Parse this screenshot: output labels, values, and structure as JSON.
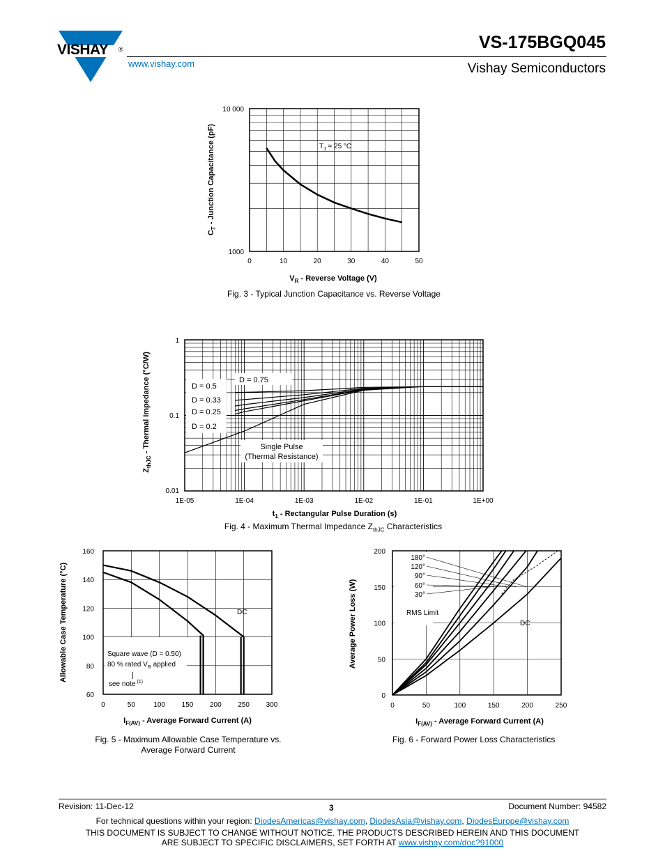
{
  "header": {
    "logo_text": "VISHAY",
    "logo_reg": "®",
    "website": "www.vishay.com",
    "part_number": "VS-175BGQ045",
    "company": "Vishay Semiconductors"
  },
  "figures": [
    {
      "id": "fig3",
      "caption": "Fig. 3 - Typical Junction Capacitance vs. Reverse Voltage",
      "ylabel_main": "C",
      "ylabel_sub": "T",
      "ylabel_rest": " - Junction Capacitance (pF)",
      "xlabel_main": "V",
      "xlabel_sub": "R",
      "xlabel_rest": " - Reverse Voltage (V)",
      "annotation_main": "T",
      "annotation_sub": "J",
      "annotation_rest": " = 25 °C",
      "yticks": [
        "10 000",
        "1000"
      ],
      "xticks": [
        "0",
        "10",
        "20",
        "30",
        "40",
        "50"
      ]
    },
    {
      "id": "fig4",
      "caption_main": "Fig. 4 - Maximum Thermal Impedance Z",
      "caption_sub": "thJC",
      "caption_rest": " Characteristics",
      "ylabel_main": "Z",
      "ylabel_sub": "thJC",
      "ylabel_rest": " - Thermal Impedance (°C/W)",
      "xlabel_main": "t",
      "xlabel_sub": "1",
      "xlabel_rest": " - Rectangular Pulse Duration (s)",
      "yticks": [
        "1",
        "0.1",
        "0.01"
      ],
      "xticks": [
        "1E-05",
        "1E-04",
        "1E-03",
        "1E-02",
        "1E-01",
        "1E+00"
      ],
      "labels": [
        "D = 0.75",
        "D = 0.5",
        "D = 0.33",
        "D = 0.25",
        "D = 0.2"
      ],
      "single_pulse": [
        "Single Pulse",
        "(Thermal Resistance)"
      ]
    },
    {
      "id": "fig5",
      "caption_line1": "Fig. 5 - Maximum Allowable Case Temperature vs.",
      "caption_line2": "Average Forward Current",
      "ylabel": "Allowable Case Temperature (°C)",
      "xlabel_main": "I",
      "xlabel_sub": "F(AV)",
      "xlabel_rest": " - Average Forward Current (A)",
      "yticks": [
        "160",
        "140",
        "120",
        "100",
        "80",
        "60"
      ],
      "xticks": [
        "0",
        "50",
        "100",
        "150",
        "200",
        "250",
        "300"
      ],
      "dc_label": "DC",
      "note1": "Square wave (D = 0.50)",
      "note2_main": "80 % rated V",
      "note2_sub": "R",
      "note2_rest": " applied",
      "note3": "see note",
      "note3_sup": "(1)"
    },
    {
      "id": "fig6",
      "caption": "Fig. 6 - Forward Power Loss Characteristics",
      "ylabel": "Average Power Loss (W)",
      "xlabel_main": "I",
      "xlabel_sub": "F(AV)",
      "xlabel_rest": " - Average Forward Current (A)",
      "yticks": [
        "200",
        "150",
        "100",
        "50",
        "0"
      ],
      "xticks": [
        "0",
        "50",
        "100",
        "150",
        "200",
        "250"
      ],
      "angle_labels": [
        "180°",
        "120°",
        "90°",
        "60°",
        "30°"
      ],
      "rms_label": "RMS Limit",
      "dc_label": "DC"
    }
  ],
  "chart_data": [
    {
      "type": "line",
      "title": "Fig. 3 - Typical Junction Capacitance vs. Reverse Voltage",
      "xlabel": "VR - Reverse Voltage (V)",
      "ylabel": "CT - Junction Capacitance (pF)",
      "xlim": [
        0,
        50
      ],
      "ylim": [
        1000,
        10000
      ],
      "yscale": "log",
      "grid": true,
      "series": [
        {
          "name": "TJ = 25 °C",
          "x": [
            5,
            7.5,
            10,
            15,
            20,
            25,
            30,
            35,
            40,
            45
          ],
          "y": [
            5300,
            4300,
            3700,
            2950,
            2500,
            2200,
            2000,
            1830,
            1700,
            1600
          ]
        }
      ]
    },
    {
      "type": "line",
      "title": "Fig. 4 - Maximum Thermal Impedance ZthJC Characteristics",
      "xlabel": "t1 - Rectangular Pulse Duration (s)",
      "ylabel": "ZthJC - Thermal Impedance (°C/W)",
      "xlim": [
        1e-05,
        1
      ],
      "ylim": [
        0.01,
        1
      ],
      "xscale": "log",
      "yscale": "log",
      "grid": true,
      "series": [
        {
          "name": "D = 0.75",
          "x": [
            7e-05,
            0.0001,
            0.001,
            0.01,
            0.1,
            1
          ],
          "y": [
            0.201,
            0.202,
            0.212,
            0.234,
            0.24,
            0.24
          ]
        },
        {
          "name": "D = 0.5",
          "x": [
            7e-05,
            0.0001,
            0.001,
            0.01,
            0.1,
            1
          ],
          "y": [
            0.158,
            0.162,
            0.188,
            0.228,
            0.24,
            0.24
          ]
        },
        {
          "name": "D = 0.33",
          "x": [
            7e-05,
            0.0001,
            0.001,
            0.01,
            0.1,
            1
          ],
          "y": [
            0.133,
            0.139,
            0.172,
            0.224,
            0.24,
            0.24
          ]
        },
        {
          "name": "D = 0.25",
          "x": [
            7e-05,
            0.0001,
            0.001,
            0.01,
            0.1,
            1
          ],
          "y": [
            0.116,
            0.122,
            0.162,
            0.22,
            0.24,
            0.24
          ]
        },
        {
          "name": "D = 0.2",
          "x": [
            7e-05,
            0.0001,
            0.001,
            0.01,
            0.1,
            1
          ],
          "y": [
            0.104,
            0.112,
            0.156,
            0.218,
            0.24,
            0.24
          ]
        },
        {
          "name": "Single Pulse (Thermal Resistance)",
          "x": [
            1e-05,
            0.0001,
            0.001,
            0.01,
            0.1,
            1
          ],
          "y": [
            0.032,
            0.062,
            0.14,
            0.215,
            0.24,
            0.24
          ]
        }
      ]
    },
    {
      "type": "line",
      "title": "Fig. 5 - Maximum Allowable Case Temperature vs. Average Forward Current",
      "xlabel": "IF(AV) - Average Forward Current (A)",
      "ylabel": "Allowable Case Temperature (°C)",
      "xlim": [
        0,
        300
      ],
      "ylim": [
        60,
        160
      ],
      "grid": true,
      "series": [
        {
          "name": "DC",
          "x": [
            0,
            50,
            100,
            150,
            200,
            250,
            250
          ],
          "y": [
            150,
            146,
            138,
            128,
            115,
            100,
            60
          ]
        },
        {
          "name": "Square wave (D = 0.50)",
          "x": [
            0,
            50,
            100,
            150,
            178,
            178
          ],
          "y": [
            145,
            138,
            126,
            111,
            101,
            60
          ]
        }
      ]
    },
    {
      "type": "line",
      "title": "Fig. 6 - Forward Power Loss Characteristics",
      "xlabel": "IF(AV) - Average Forward Current (A)",
      "ylabel": "Average Power Loss (W)",
      "xlim": [
        0,
        250
      ],
      "ylim": [
        0,
        200
      ],
      "grid": true,
      "series": [
        {
          "name": "180°",
          "x": [
            0,
            50,
            100,
            150,
            162
          ],
          "y": [
            0,
            50,
            120,
            185,
            200
          ]
        },
        {
          "name": "120°",
          "x": [
            0,
            50,
            100,
            150,
            168
          ],
          "y": [
            0,
            45,
            110,
            175,
            200
          ]
        },
        {
          "name": "90°",
          "x": [
            0,
            50,
            100,
            150,
            180
          ],
          "y": [
            0,
            42,
            100,
            160,
            200
          ]
        },
        {
          "name": "60°",
          "x": [
            0,
            50,
            100,
            150,
            198
          ],
          "y": [
            0,
            37,
            88,
            145,
            200
          ]
        },
        {
          "name": "30°",
          "x": [
            0,
            50,
            100,
            150,
            200,
            215
          ],
          "y": [
            0,
            32,
            75,
            125,
            178,
            200
          ]
        },
        {
          "name": "DC",
          "x": [
            0,
            50,
            100,
            150,
            200,
            250
          ],
          "y": [
            0,
            27,
            62,
            100,
            140,
            190
          ]
        },
        {
          "name": "RMS Limit",
          "x": [
            162,
            170,
            180,
            198,
            215,
            245
          ],
          "y": [
            140,
            150,
            160,
            170,
            180,
            200
          ]
        }
      ]
    }
  ],
  "footer": {
    "revision": "Revision: 11-Dec-12",
    "page": "3",
    "docnum": "Document Number: 94582",
    "contact_prefix": "For technical questions within your region: ",
    "email1": "DiodesAmericas@vishay.com",
    "sep1": ", ",
    "email2": "DiodesAsia@vishay.com",
    "sep2": ", ",
    "email3": "DiodesEurope@vishay.com",
    "disclaimer1": "THIS DOCUMENT IS SUBJECT TO CHANGE WITHOUT NOTICE. THE PRODUCTS DESCRIBED HEREIN AND THIS DOCUMENT",
    "disclaimer2": "ARE SUBJECT TO SPECIFIC DISCLAIMERS, SET FORTH AT ",
    "disclaimer_link": "www.vishay.com/doc?91000"
  }
}
